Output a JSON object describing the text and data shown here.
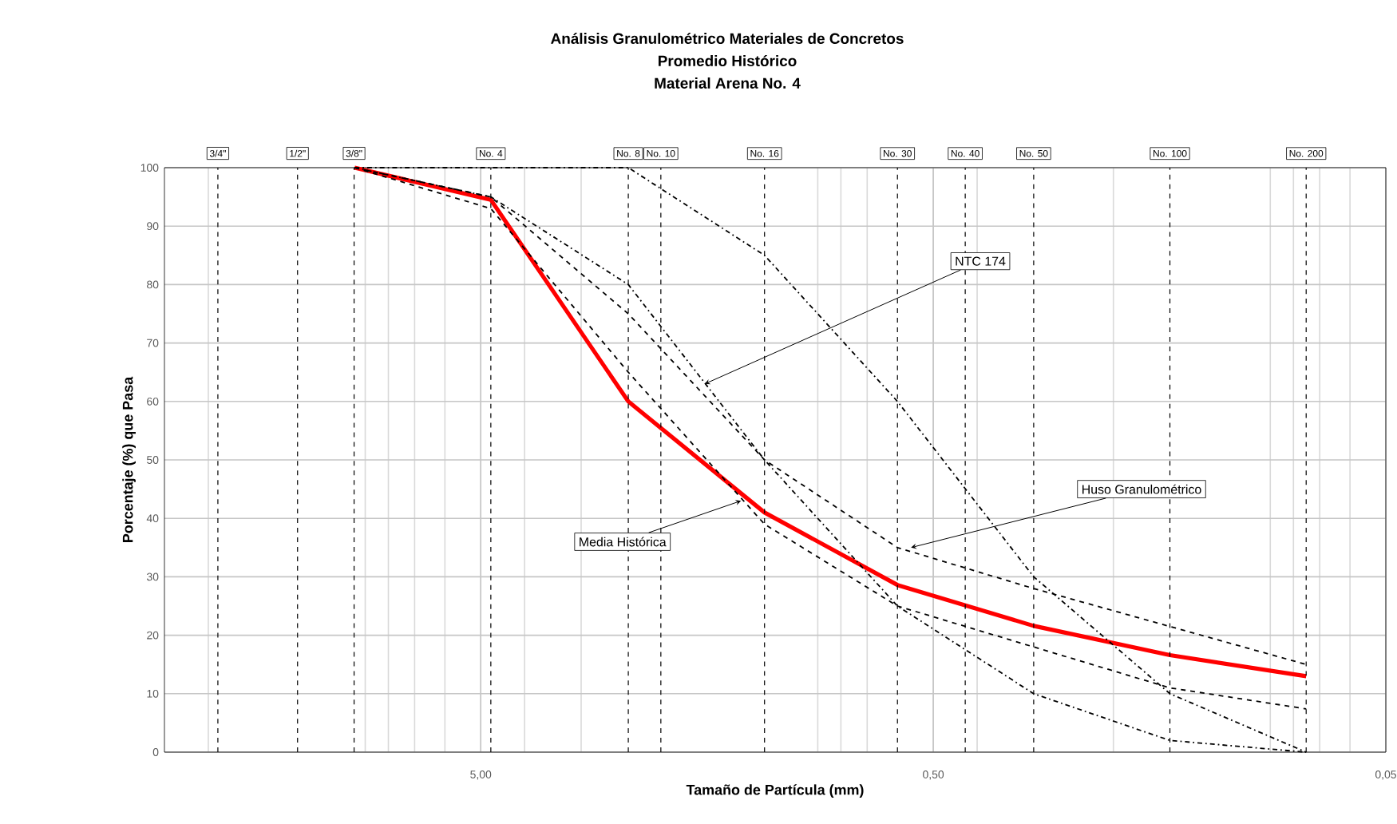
{
  "chart_data": {
    "type": "line",
    "title": "Análisis Granulométrico Materiales de Concretos",
    "subtitle": "Promedio Histórico",
    "xlabel": "Tamaño de Partícula (mm)",
    "ylabel": "Porcentaje (%) que Pasa",
    "log": "x",
    "xlim": [
      25,
      0.05
    ],
    "xticks": [
      {
        "value": 5,
        "label": "5,00"
      },
      {
        "value": 0.5,
        "label": "0,50"
      },
      {
        "value": 0.05,
        "label": "0,05"
      }
    ],
    "ylim": [
      0,
      100
    ],
    "yticks": [
      0,
      10,
      20,
      30,
      40,
      50,
      60,
      70,
      80,
      90,
      100
    ],
    "grid": true,
    "series": [
      {
        "color": "#ff0000",
        "line_style": "solid",
        "x": [
          9.5,
          4.75,
          2.36,
          1.18,
          0.6,
          0.3,
          0.15,
          0.075
        ],
        "values": [
          100,
          94.5,
          60,
          41,
          28.6,
          21.6,
          16.6,
          13
        ]
      },
      {
        "color": "#000000",
        "line_style": "dashed",
        "x": [
          9.5,
          4.75,
          2.36,
          1.18,
          0.6,
          0.3,
          0.15,
          0.075
        ],
        "values": [
          100,
          95,
          75,
          50,
          35,
          28,
          21.5,
          15
        ]
      },
      {
        "color": "#000000",
        "line_style": "dashed",
        "x": [
          9.5,
          4.75,
          2.36,
          1.18,
          0.6,
          0.3,
          0.15,
          0.075
        ],
        "values": [
          100,
          93,
          65,
          39,
          25,
          18,
          11,
          7.4
        ]
      },
      {
        "color": "#000000",
        "line_style": "dashdot",
        "x": [
          9.5,
          4.75,
          2.36,
          1.18,
          0.6,
          0.3,
          0.15,
          0.075
        ],
        "values": [
          100,
          100,
          100,
          85,
          60,
          30,
          10,
          0
        ]
      },
      {
        "color": "#000000",
        "line_style": "dashdot",
        "x": [
          9.5,
          4.75,
          2.36,
          1.18,
          0.6,
          0.3,
          0.15,
          0.075
        ],
        "values": [
          100,
          95,
          80,
          50,
          25,
          10,
          2,
          0
        ]
      }
    ],
    "ref_lines": [
      {
        "axis": "x",
        "value": 19.05,
        "line_style": "dashed"
      },
      {
        "axis": "x",
        "value": 12.7,
        "line_style": "dashed"
      },
      {
        "axis": "x",
        "value": 9.525,
        "line_style": "dashed"
      },
      {
        "axis": "x",
        "value": 4.75,
        "label": "No. 4",
        "line_style": "dashed"
      },
      {
        "axis": "x",
        "value": 2.36,
        "label": "No. 8",
        "line_style": "dashed"
      },
      {
        "axis": "x",
        "value": 2.0,
        "label": "No. 10",
        "line_style": "dashed"
      },
      {
        "axis": "x",
        "value": 1.18,
        "label": "No. 16",
        "line_style": "dashed"
      },
      {
        "axis": "x",
        "value": 0.6,
        "label": "No. 30",
        "line_style": "dashed"
      },
      {
        "axis": "x",
        "value": 0.425,
        "label": "No. 40",
        "line_style": "dashed"
      },
      {
        "axis": "x",
        "value": 0.3,
        "label": "No. 50",
        "line_style": "dashed"
      },
      {
        "axis": "x",
        "value": 0.15,
        "label": "No. 100",
        "line_style": "dashed"
      },
      {
        "axis": "x",
        "value": 0.075,
        "label": "No. 200",
        "line_style": "dashed"
      }
    ],
    "annotations": [
      "Material Arena No. 4",
      {
        "text": "3/4\"",
        "x": 19.05,
        "y": 100
      },
      {
        "text": "1/2\"",
        "x": 12.7,
        "y": 100
      },
      {
        "text": "3/8\"",
        "x": 9.525,
        "y": 100
      },
      {
        "text": "NTC 174",
        "x": 1.6,
        "y": 63
      },
      {
        "text": "Huso Granulométrico",
        "x": 0.56,
        "y": 35
      },
      {
        "text": "Media Histórica",
        "x": 1.33,
        "y": 43
      }
    ]
  }
}
